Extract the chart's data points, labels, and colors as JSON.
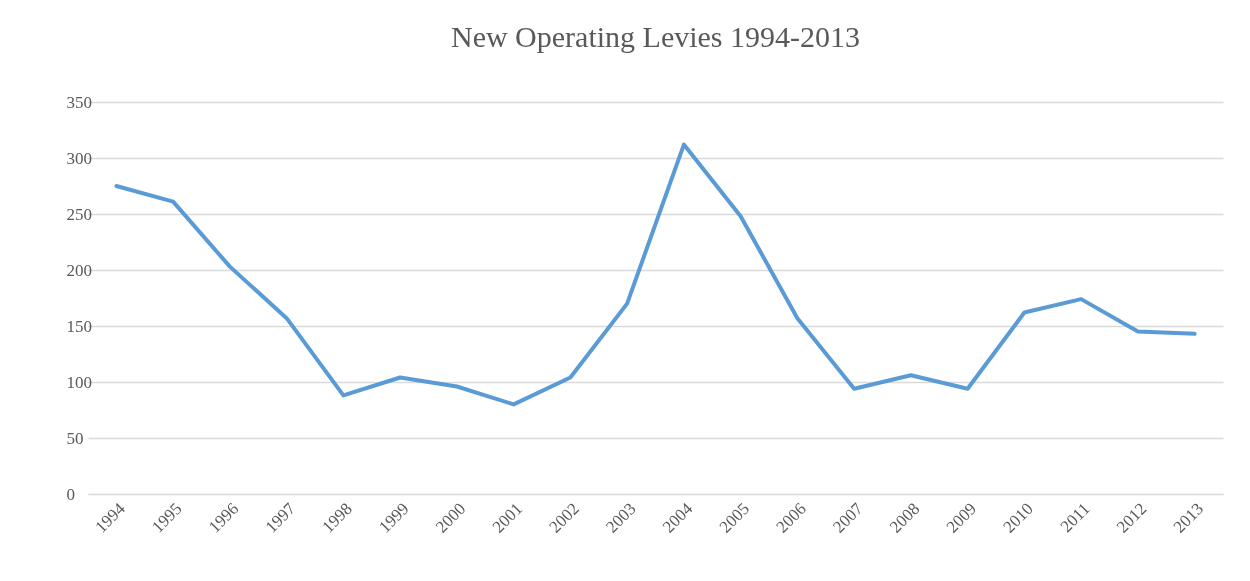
{
  "chart_data": {
    "type": "line",
    "title": "New Operating Levies 1994-2013",
    "categories": [
      "1994",
      "1995",
      "1996",
      "1997",
      "1998",
      "1999",
      "2000",
      "2001",
      "2002",
      "2003",
      "2004",
      "2005",
      "2006",
      "2007",
      "2008",
      "2009",
      "2010",
      "2011",
      "2012",
      "2013"
    ],
    "series": [
      {
        "color": "#5b9bd5",
        "values": [
          275,
          261,
          203,
          157,
          88,
          104,
          96,
          80,
          104,
          170,
          312,
          248,
          157,
          94,
          106,
          94,
          162,
          174,
          145,
          143
        ]
      }
    ],
    "ylim": [
      0,
      350
    ],
    "yticks": [
      0,
      50,
      100,
      150,
      200,
      250,
      300,
      350
    ],
    "grid": "y",
    "legend": false,
    "marker": "none",
    "line_style": "solid"
  }
}
